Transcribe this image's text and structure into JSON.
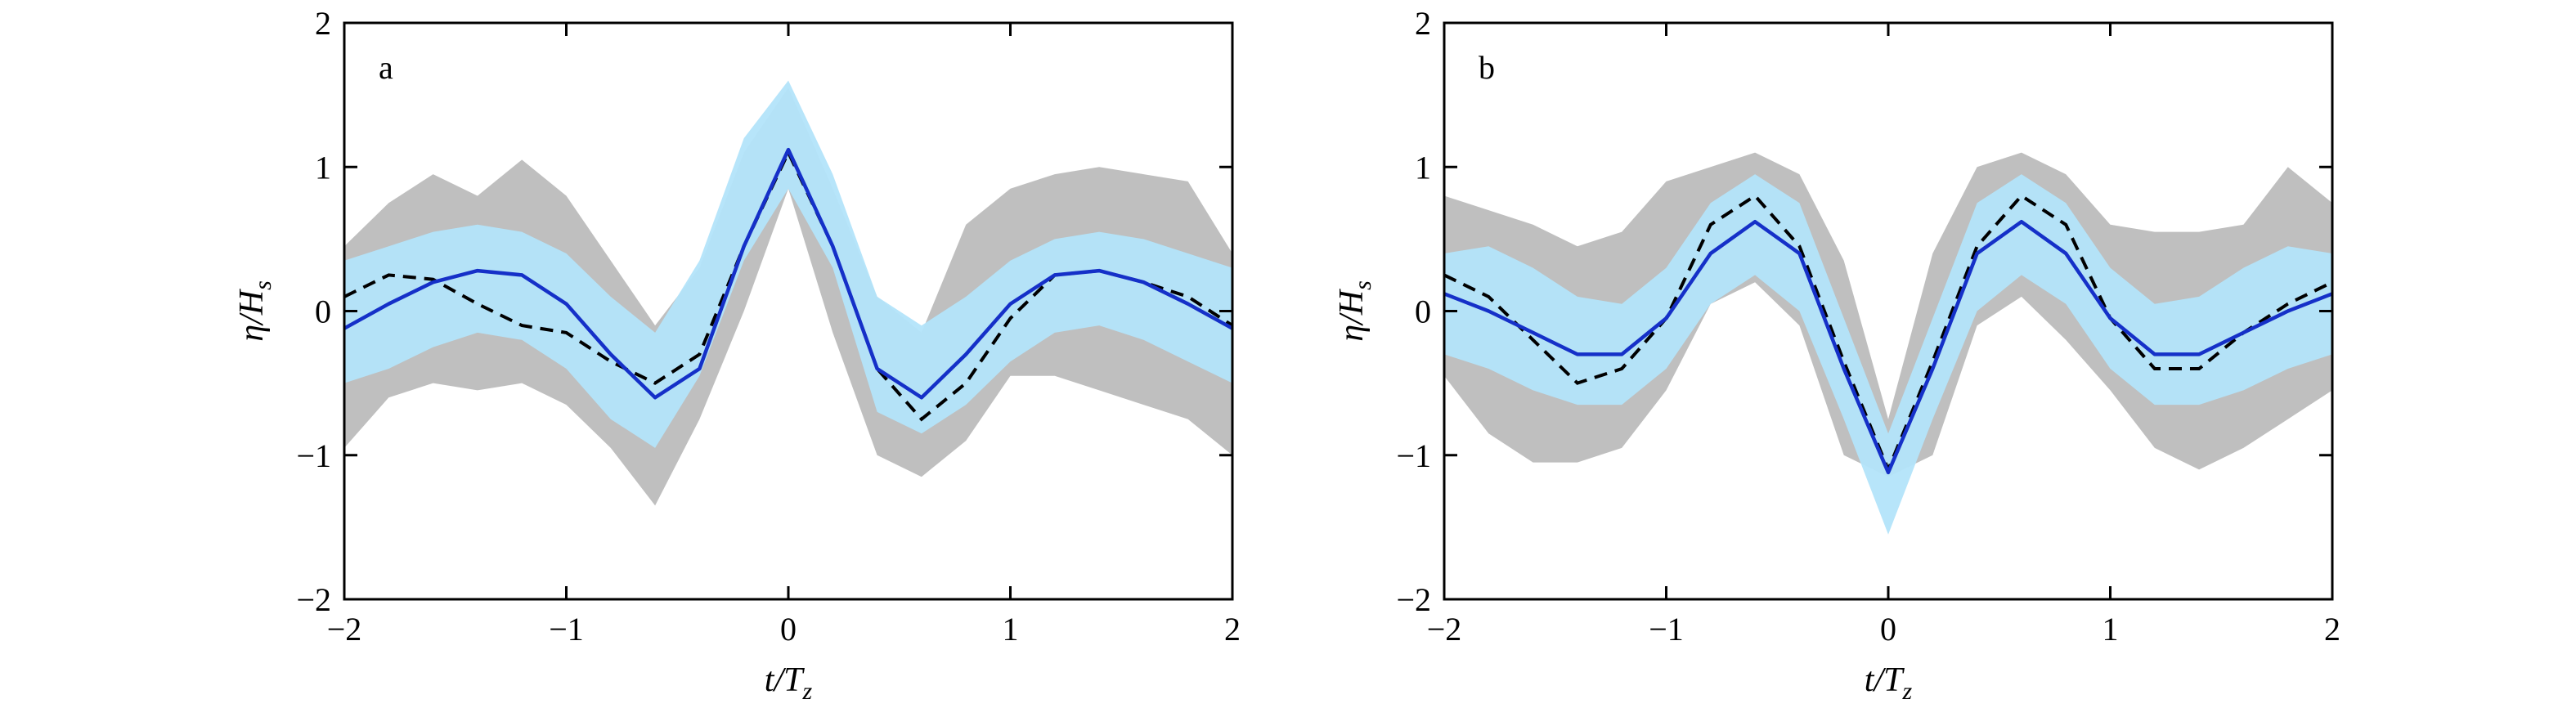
{
  "chart_data": [
    {
      "type": "line",
      "panel_label": "a",
      "xlabel": "t/T",
      "xlabel_sub": "z",
      "ylabel": "η/H",
      "ylabel_sub": "s",
      "xlim": [
        -2,
        2
      ],
      "ylim": [
        -2,
        2
      ],
      "xticks": [
        -2,
        -1,
        0,
        1,
        2
      ],
      "yticks": [
        -2,
        -1,
        0,
        1,
        2
      ],
      "xtick_labels": [
        "−2",
        "−1",
        "0",
        "1",
        "2"
      ],
      "ytick_labels": [
        "−2",
        "−1",
        "0",
        "1",
        "2"
      ],
      "grid": false,
      "x": [
        -2.0,
        -1.8,
        -1.6,
        -1.4,
        -1.2,
        -1.0,
        -0.8,
        -0.6,
        -0.4,
        -0.2,
        0.0,
        0.2,
        0.4,
        0.6,
        0.8,
        1.0,
        1.2,
        1.4,
        1.6,
        1.8,
        2.0
      ],
      "series": [
        {
          "role": "gray-band-upper",
          "color": "#b4b4b4",
          "values": [
            0.45,
            0.75,
            0.95,
            0.8,
            1.05,
            0.8,
            0.35,
            -0.1,
            0.3,
            1.1,
            1.55,
            0.85,
            0.1,
            -0.15,
            0.6,
            0.85,
            0.95,
            1.0,
            0.95,
            0.9,
            0.4
          ]
        },
        {
          "role": "gray-band-lower",
          "color": "#b4b4b4",
          "values": [
            -0.95,
            -0.6,
            -0.5,
            -0.55,
            -0.5,
            -0.65,
            -0.95,
            -1.35,
            -0.75,
            0.0,
            0.85,
            -0.15,
            -1.0,
            -1.15,
            -0.9,
            -0.45,
            -0.45,
            -0.55,
            -0.65,
            -0.75,
            -1.0
          ]
        },
        {
          "role": "blue-band-upper",
          "color": "#b3e4fa",
          "values": [
            0.35,
            0.45,
            0.55,
            0.6,
            0.55,
            0.4,
            0.1,
            -0.15,
            0.35,
            1.2,
            1.6,
            0.95,
            0.1,
            -0.1,
            0.1,
            0.35,
            0.5,
            0.55,
            0.5,
            0.4,
            0.3
          ]
        },
        {
          "role": "blue-band-lower",
          "color": "#b3e4fa",
          "values": [
            -0.5,
            -0.4,
            -0.25,
            -0.15,
            -0.2,
            -0.4,
            -0.75,
            -0.95,
            -0.45,
            0.35,
            0.85,
            0.3,
            -0.7,
            -0.85,
            -0.65,
            -0.35,
            -0.15,
            -0.1,
            -0.2,
            -0.35,
            -0.5
          ]
        },
        {
          "role": "mean",
          "color": "#1530c8",
          "style": "solid",
          "values": [
            -0.12,
            0.05,
            0.2,
            0.28,
            0.25,
            0.05,
            -0.3,
            -0.6,
            -0.4,
            0.45,
            1.12,
            0.45,
            -0.4,
            -0.6,
            -0.3,
            0.05,
            0.25,
            0.28,
            0.2,
            0.05,
            -0.12
          ]
        },
        {
          "role": "theory",
          "color": "#000000",
          "style": "dashed",
          "values": [
            0.1,
            0.25,
            0.22,
            0.05,
            -0.1,
            -0.15,
            -0.35,
            -0.5,
            -0.3,
            0.45,
            1.1,
            0.45,
            -0.4,
            -0.75,
            -0.5,
            -0.05,
            0.25,
            0.28,
            0.2,
            0.1,
            -0.1
          ]
        }
      ]
    },
    {
      "type": "line",
      "panel_label": "b",
      "xlabel": "t/T",
      "xlabel_sub": "z",
      "ylabel": "η/H",
      "ylabel_sub": "s",
      "xlim": [
        -2,
        2
      ],
      "ylim": [
        -2,
        2
      ],
      "xticks": [
        -2,
        -1,
        0,
        1,
        2
      ],
      "yticks": [
        -2,
        -1,
        0,
        1,
        2
      ],
      "xtick_labels": [
        "−2",
        "−1",
        "0",
        "1",
        "2"
      ],
      "ytick_labels": [
        "−2",
        "−1",
        "0",
        "1",
        "2"
      ],
      "grid": false,
      "x": [
        -2.0,
        -1.8,
        -1.6,
        -1.4,
        -1.2,
        -1.0,
        -0.8,
        -0.6,
        -0.4,
        -0.2,
        0.0,
        0.2,
        0.4,
        0.6,
        0.8,
        1.0,
        1.2,
        1.4,
        1.6,
        1.8,
        2.0
      ],
      "series": [
        {
          "role": "gray-band-upper",
          "color": "#b4b4b4",
          "values": [
            0.8,
            0.7,
            0.6,
            0.45,
            0.55,
            0.9,
            1.0,
            1.1,
            0.95,
            0.35,
            -0.75,
            0.4,
            1.0,
            1.1,
            0.95,
            0.6,
            0.55,
            0.55,
            0.6,
            1.0,
            0.75
          ]
        },
        {
          "role": "gray-band-lower",
          "color": "#b4b4b4",
          "values": [
            -0.45,
            -0.85,
            -1.05,
            -1.05,
            -0.95,
            -0.55,
            0.05,
            0.2,
            -0.1,
            -1.0,
            -1.15,
            -1.0,
            -0.1,
            0.1,
            -0.2,
            -0.55,
            -0.95,
            -1.1,
            -0.95,
            -0.75,
            -0.55
          ]
        },
        {
          "role": "blue-band-upper",
          "color": "#b3e4fa",
          "values": [
            0.4,
            0.45,
            0.3,
            0.1,
            0.05,
            0.3,
            0.75,
            0.95,
            0.75,
            -0.05,
            -0.85,
            -0.05,
            0.75,
            0.95,
            0.75,
            0.3,
            0.05,
            0.1,
            0.3,
            0.45,
            0.4
          ]
        },
        {
          "role": "blue-band-lower",
          "color": "#b3e4fa",
          "values": [
            -0.3,
            -0.4,
            -0.55,
            -0.65,
            -0.65,
            -0.4,
            0.05,
            0.25,
            0.0,
            -0.75,
            -1.55,
            -0.75,
            0.0,
            0.25,
            0.05,
            -0.4,
            -0.65,
            -0.65,
            -0.55,
            -0.4,
            -0.3
          ]
        },
        {
          "role": "mean",
          "color": "#1530c8",
          "style": "solid",
          "values": [
            0.12,
            0.0,
            -0.15,
            -0.3,
            -0.3,
            -0.05,
            0.4,
            0.62,
            0.4,
            -0.4,
            -1.12,
            -0.4,
            0.4,
            0.62,
            0.4,
            -0.05,
            -0.3,
            -0.3,
            -0.15,
            0.0,
            0.12
          ]
        },
        {
          "role": "theory",
          "color": "#000000",
          "style": "dashed",
          "values": [
            0.25,
            0.1,
            -0.2,
            -0.5,
            -0.4,
            -0.05,
            0.6,
            0.8,
            0.45,
            -0.35,
            -1.1,
            -0.35,
            0.45,
            0.8,
            0.6,
            -0.05,
            -0.4,
            -0.4,
            -0.15,
            0.05,
            0.2
          ]
        }
      ]
    }
  ]
}
